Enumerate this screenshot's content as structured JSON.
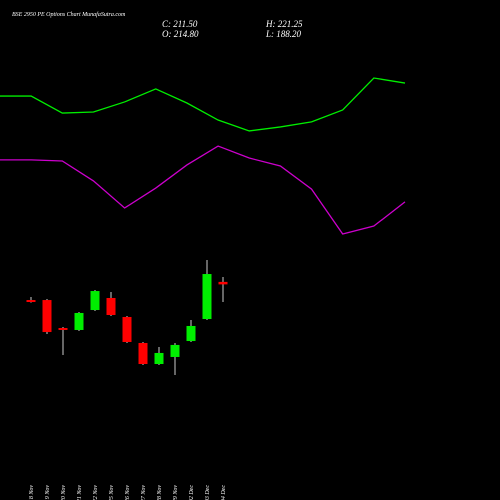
{
  "header": {
    "title": "BSE 2950 PE Options Chart MunafaSutra.com",
    "close": "C: 211.50",
    "high": "H: 221.25",
    "open": "O: 214.80",
    "low": "L: 188.20"
  },
  "chart_data": [
    {
      "type": "line",
      "ylim": [
        0,
        100
      ],
      "series": [
        {
          "color": "#00ee00",
          "values": [
            73.3,
            73.3,
            65.2,
            65.7,
            70.5,
            76.7,
            70,
            61.9,
            56.7,
            58.6,
            61,
            66.7,
            81.9,
            79.5
          ]
        },
        {
          "color": "#cc00cc",
          "values": [
            42.9,
            42.9,
            42.4,
            32.9,
            20,
            29.5,
            40.5,
            49.5,
            43.8,
            40,
            29,
            7.6,
            11.4,
            22.9
          ]
        }
      ]
    },
    {
      "type": "candlestick",
      "ylim": [
        58.6,
        270.2
      ],
      "up_color": "#00ee00",
      "down_color": "#ff0000",
      "categories": [
        "18 Nov",
        "19 Nov",
        "20 Nov",
        "21 Nov",
        "22 Nov",
        "25 Nov",
        "26 Nov",
        "27 Nov",
        "28 Nov",
        "29 Nov",
        "02 Dec",
        "03 Dec",
        "04 Dec"
      ],
      "open": [
        190.8,
        190.8,
        153.8,
        151.2,
        177.6,
        193.5,
        168.4,
        134,
        106.2,
        115.5,
        136.6,
        165.7,
        214.8
      ],
      "high": [
        194.8,
        192.2,
        155.1,
        175,
        204.1,
        201.4,
        169.7,
        135.3,
        128.7,
        134,
        164.4,
        243.7,
        221.25
      ],
      "low": [
        187.4,
        145.9,
        118.1,
        149.9,
        176.3,
        169.7,
        134,
        104.9,
        104.9,
        91.7,
        135.3,
        164.4,
        188.2
      ],
      "close": [
        188.2,
        148.5,
        151.2,
        173.7,
        202.7,
        171,
        135.3,
        106.2,
        120.8,
        131.4,
        156.5,
        225.2,
        211.5
      ]
    }
  ]
}
